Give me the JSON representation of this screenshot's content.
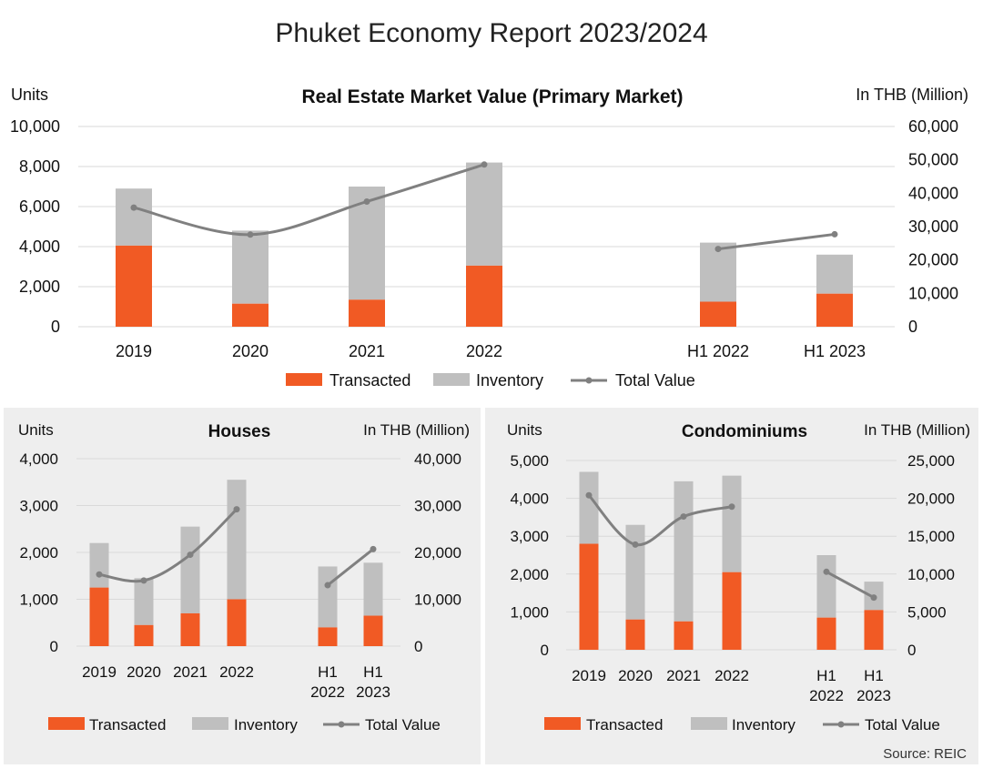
{
  "page_title": "Phuket Economy Report 2023/2024",
  "source": "Source: REIC",
  "colors": {
    "transacted": "#f15a24",
    "inventory": "#bfbfbf",
    "total_line": "#808080",
    "panel_bg": "#eeeeee"
  },
  "legend": {
    "transacted": "Transacted",
    "inventory": "Inventory",
    "total": "Total Value"
  },
  "chart_data": [
    {
      "type": "bar",
      "title": "Real Estate Market Value (Primary Market)",
      "stacked": true,
      "categories": [
        "2019",
        "2020",
        "2021",
        "2022",
        "",
        "H1 2022",
        "H1 2023"
      ],
      "series": [
        {
          "name": "Transacted",
          "axis": "left",
          "values": [
            4050,
            1150,
            1350,
            3050,
            null,
            1250,
            1650
          ]
        },
        {
          "name": "Inventory",
          "axis": "left",
          "values": [
            2850,
            3650,
            5650,
            5150,
            null,
            2950,
            1950
          ]
        },
        {
          "name": "Total Value",
          "type": "line",
          "axis": "right",
          "segments": [
            [
              0,
              3
            ],
            [
              5,
              6
            ]
          ],
          "values": [
            35700,
            27600,
            37500,
            48600,
            null,
            23300,
            27700
          ]
        }
      ],
      "ylabel": "Units",
      "y2label": "In THB (Million)",
      "ylim": [
        0,
        10000
      ],
      "yticks": [
        "0",
        "2,000",
        "4,000",
        "6,000",
        "8,000",
        "10,000"
      ],
      "y2lim": [
        0,
        60000
      ],
      "y2ticks": [
        "0",
        "10,000",
        "20,000",
        "30,000",
        "40,000",
        "50,000",
        "60,000"
      ]
    },
    {
      "type": "bar",
      "title": "Houses",
      "stacked": true,
      "categories": [
        "2019",
        "2020",
        "2021",
        "2022",
        "",
        "H1\n2022",
        "H1\n2023"
      ],
      "series": [
        {
          "name": "Transacted",
          "axis": "left",
          "values": [
            1250,
            450,
            700,
            1000,
            null,
            400,
            650
          ]
        },
        {
          "name": "Inventory",
          "axis": "left",
          "values": [
            950,
            1000,
            1850,
            2550,
            null,
            1300,
            1130
          ]
        },
        {
          "name": "Total Value",
          "type": "line",
          "axis": "right",
          "segments": [
            [
              0,
              3
            ],
            [
              5,
              6
            ]
          ],
          "values": [
            15300,
            14000,
            19500,
            29200,
            null,
            13000,
            20700
          ]
        }
      ],
      "ylabel": "Units",
      "y2label": "In THB (Million)",
      "ylim": [
        0,
        4000
      ],
      "yticks": [
        "0",
        "1,000",
        "2,000",
        "3,000",
        "4,000"
      ],
      "y2lim": [
        0,
        40000
      ],
      "y2ticks": [
        "0",
        "10,000",
        "20,000",
        "30,000",
        "40,000"
      ]
    },
    {
      "type": "bar",
      "title": "Condominiums",
      "stacked": true,
      "categories": [
        "2019",
        "2020",
        "2021",
        "2022",
        "",
        "H1\n2022",
        "H1\n2023"
      ],
      "series": [
        {
          "name": "Transacted",
          "axis": "left",
          "values": [
            2800,
            800,
            750,
            2050,
            null,
            850,
            1050
          ]
        },
        {
          "name": "Inventory",
          "axis": "left",
          "values": [
            1900,
            2500,
            3700,
            2550,
            null,
            1650,
            750
          ]
        },
        {
          "name": "Total Value",
          "type": "line",
          "axis": "right",
          "segments": [
            [
              0,
              3
            ],
            [
              5,
              6
            ]
          ],
          "values": [
            20400,
            13900,
            17600,
            18900,
            null,
            10300,
            6900
          ]
        }
      ],
      "ylabel": "Units",
      "y2label": "In THB (Million)",
      "ylim": [
        0,
        5000
      ],
      "yticks": [
        "0",
        "1,000",
        "2,000",
        "3,000",
        "4,000",
        "5,000"
      ],
      "y2lim": [
        0,
        25000
      ],
      "y2ticks": [
        "0",
        "5,000",
        "10,000",
        "15,000",
        "20,000",
        "25,000"
      ]
    }
  ]
}
